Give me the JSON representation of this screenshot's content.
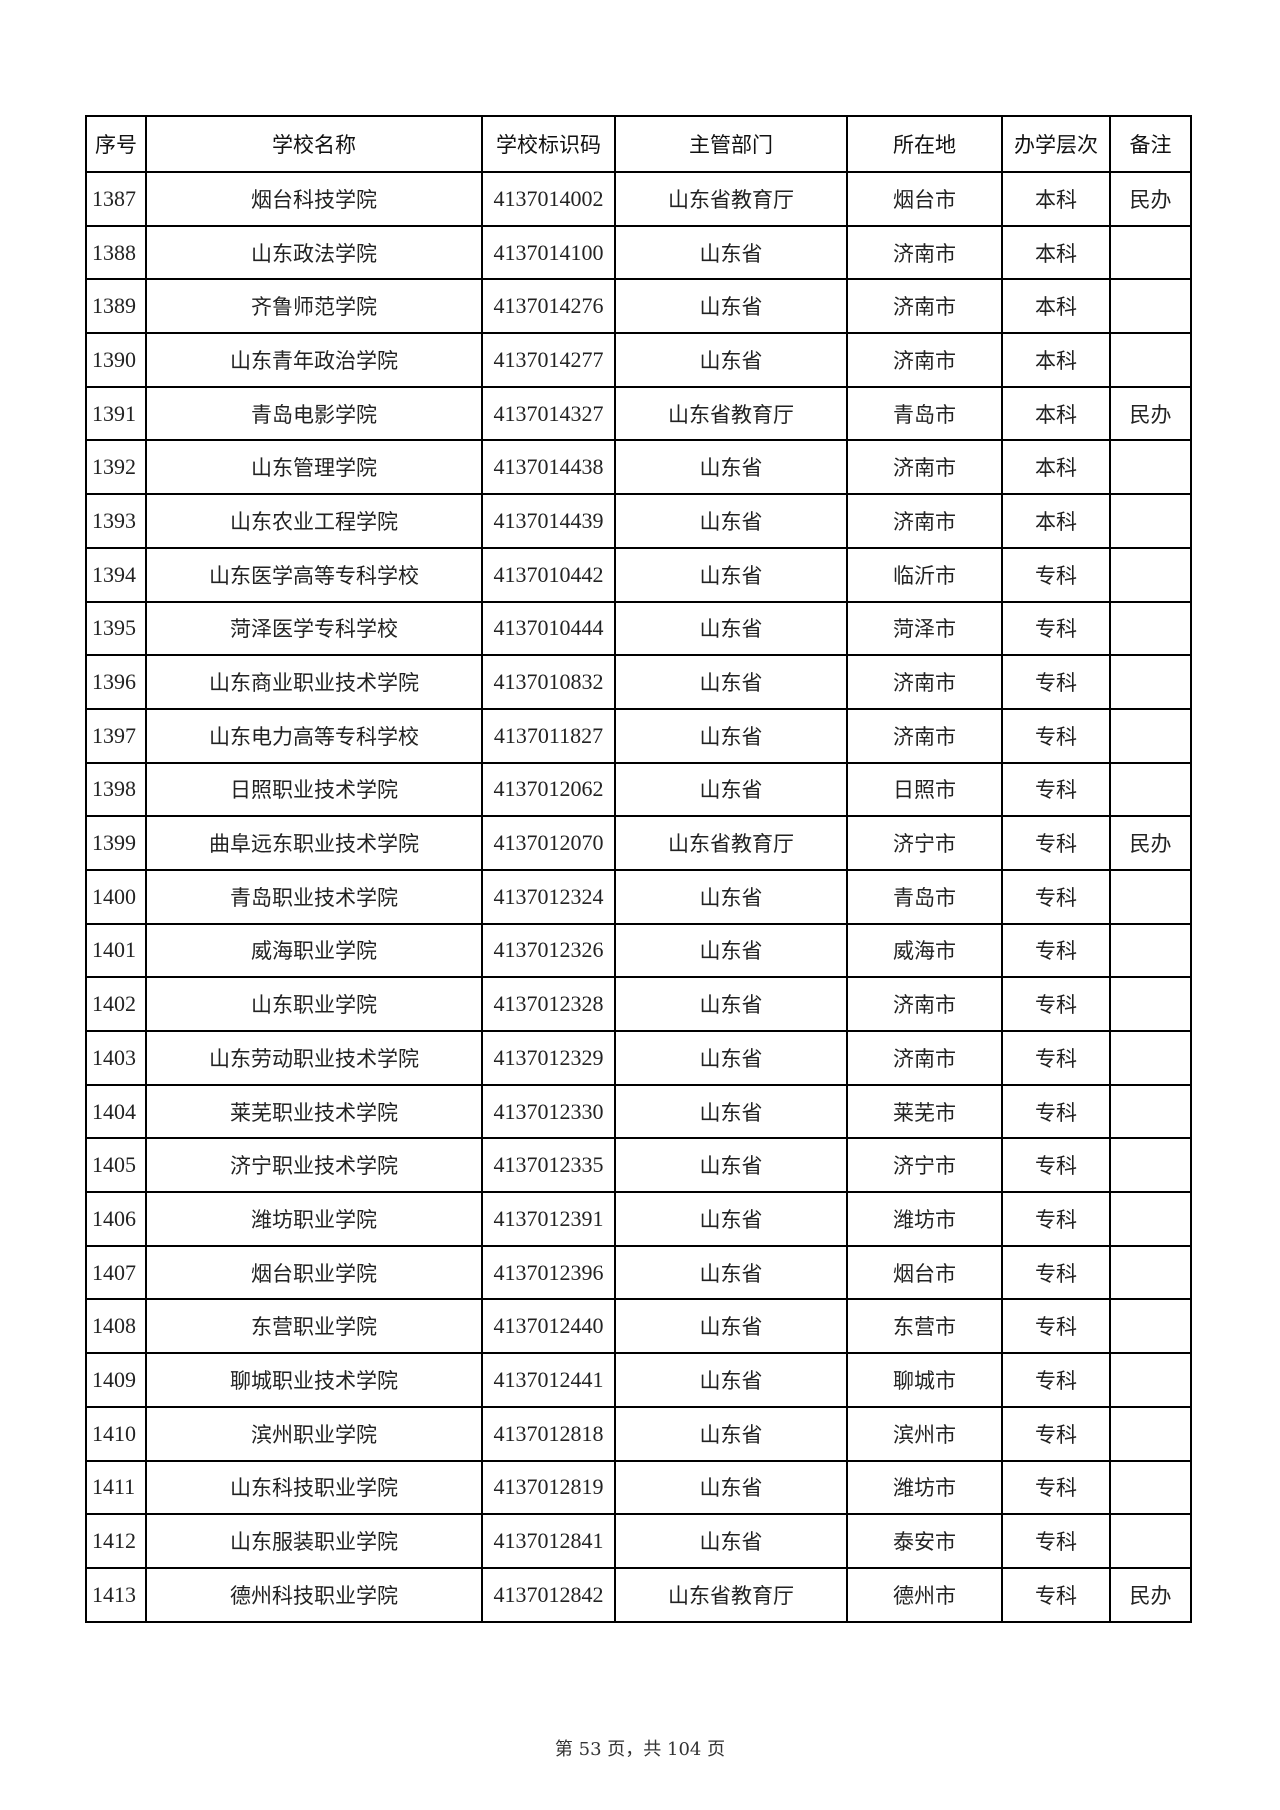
{
  "headers": [
    "序号",
    "学校名称",
    "学校标识码",
    "主管部门",
    "所在地",
    "办学层次",
    "备注"
  ],
  "rows": [
    [
      "1387",
      "烟台科技学院",
      "4137014002",
      "山东省教育厅",
      "烟台市",
      "本科",
      "民办"
    ],
    [
      "1388",
      "山东政法学院",
      "4137014100",
      "山东省",
      "济南市",
      "本科",
      ""
    ],
    [
      "1389",
      "齐鲁师范学院",
      "4137014276",
      "山东省",
      "济南市",
      "本科",
      ""
    ],
    [
      "1390",
      "山东青年政治学院",
      "4137014277",
      "山东省",
      "济南市",
      "本科",
      ""
    ],
    [
      "1391",
      "青岛电影学院",
      "4137014327",
      "山东省教育厅",
      "青岛市",
      "本科",
      "民办"
    ],
    [
      "1392",
      "山东管理学院",
      "4137014438",
      "山东省",
      "济南市",
      "本科",
      ""
    ],
    [
      "1393",
      "山东农业工程学院",
      "4137014439",
      "山东省",
      "济南市",
      "本科",
      ""
    ],
    [
      "1394",
      "山东医学高等专科学校",
      "4137010442",
      "山东省",
      "临沂市",
      "专科",
      ""
    ],
    [
      "1395",
      "菏泽医学专科学校",
      "4137010444",
      "山东省",
      "菏泽市",
      "专科",
      ""
    ],
    [
      "1396",
      "山东商业职业技术学院",
      "4137010832",
      "山东省",
      "济南市",
      "专科",
      ""
    ],
    [
      "1397",
      "山东电力高等专科学校",
      "4137011827",
      "山东省",
      "济南市",
      "专科",
      ""
    ],
    [
      "1398",
      "日照职业技术学院",
      "4137012062",
      "山东省",
      "日照市",
      "专科",
      ""
    ],
    [
      "1399",
      "曲阜远东职业技术学院",
      "4137012070",
      "山东省教育厅",
      "济宁市",
      "专科",
      "民办"
    ],
    [
      "1400",
      "青岛职业技术学院",
      "4137012324",
      "山东省",
      "青岛市",
      "专科",
      ""
    ],
    [
      "1401",
      "威海职业学院",
      "4137012326",
      "山东省",
      "威海市",
      "专科",
      ""
    ],
    [
      "1402",
      "山东职业学院",
      "4137012328",
      "山东省",
      "济南市",
      "专科",
      ""
    ],
    [
      "1403",
      "山东劳动职业技术学院",
      "4137012329",
      "山东省",
      "济南市",
      "专科",
      ""
    ],
    [
      "1404",
      "莱芜职业技术学院",
      "4137012330",
      "山东省",
      "莱芜市",
      "专科",
      ""
    ],
    [
      "1405",
      "济宁职业技术学院",
      "4137012335",
      "山东省",
      "济宁市",
      "专科",
      ""
    ],
    [
      "1406",
      "潍坊职业学院",
      "4137012391",
      "山东省",
      "潍坊市",
      "专科",
      ""
    ],
    [
      "1407",
      "烟台职业学院",
      "4137012396",
      "山东省",
      "烟台市",
      "专科",
      ""
    ],
    [
      "1408",
      "东营职业学院",
      "4137012440",
      "山东省",
      "东营市",
      "专科",
      ""
    ],
    [
      "1409",
      "聊城职业技术学院",
      "4137012441",
      "山东省",
      "聊城市",
      "专科",
      ""
    ],
    [
      "1410",
      "滨州职业学院",
      "4137012818",
      "山东省",
      "滨州市",
      "专科",
      ""
    ],
    [
      "1411",
      "山东科技职业学院",
      "4137012819",
      "山东省",
      "潍坊市",
      "专科",
      ""
    ],
    [
      "1412",
      "山东服装职业学院",
      "4137012841",
      "山东省",
      "泰安市",
      "专科",
      ""
    ],
    [
      "1413",
      "德州科技职业学院",
      "4137012842",
      "山东省教育厅",
      "德州市",
      "专科",
      "民办"
    ]
  ],
  "footer": "第 53 页，共 104 页"
}
